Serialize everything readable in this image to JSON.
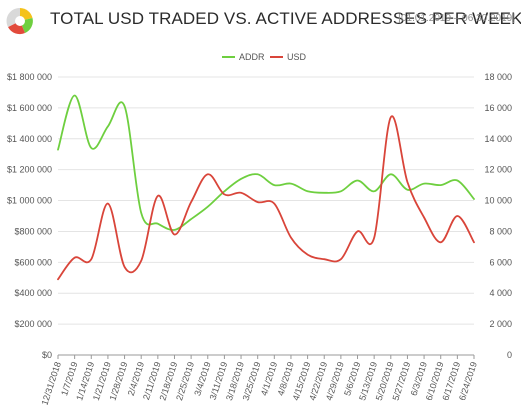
{
  "header": {
    "title": "TOTAL USD TRADED VS. ACTIVE ADDRESSES PER WEEK",
    "date_range": "[01.01.2019 – 06.30.2019]"
  },
  "colors": {
    "addr": "#6ecf3f",
    "usd": "#d9453a",
    "grid": "#e4e4e4",
    "axis": "#999999",
    "text": "#555555"
  },
  "chart_data": {
    "type": "line",
    "x": [
      "12/31/2018",
      "1/7/2019",
      "1/14/2019",
      "1/21/2019",
      "1/28/2019",
      "2/4/2019",
      "2/11/2019",
      "2/18/2019",
      "2/25/2019",
      "3/4/2019",
      "3/11/2019",
      "3/18/2019",
      "3/25/2019",
      "4/1/2019",
      "4/8/2019",
      "4/15/2019",
      "4/22/2019",
      "4/29/2019",
      "5/6/2019",
      "5/13/2019",
      "5/20/2019",
      "5/27/2019",
      "6/3/2019",
      "6/10/2019",
      "6/17/2019",
      "6/24/2019"
    ],
    "series": [
      {
        "name": "ADDR",
        "axis": "right",
        "color": "#6ecf3f",
        "values": [
          13300,
          16800,
          13400,
          14800,
          16100,
          9200,
          8500,
          8100,
          8800,
          9600,
          10600,
          11400,
          11700,
          11000,
          11100,
          10600,
          10500,
          10600,
          11300,
          10600,
          11700,
          10700,
          11100,
          11000,
          11300,
          10100
        ]
      },
      {
        "name": "USD",
        "axis": "left",
        "color": "#d9453a",
        "values": [
          490000,
          630000,
          620000,
          980000,
          570000,
          610000,
          1030000,
          780000,
          990000,
          1170000,
          1040000,
          1050000,
          990000,
          980000,
          760000,
          650000,
          620000,
          620000,
          800000,
          760000,
          1540000,
          1120000,
          890000,
          730000,
          900000,
          730000
        ]
      }
    ],
    "y_left": {
      "min": 0,
      "max": 1800000,
      "step": 200000,
      "tick_labels": [
        "$0",
        "$200 000",
        "$400 000",
        "$600 000",
        "$800 000",
        "$1 000 000",
        "$1 200 000",
        "$1 400 000",
        "$1 600 000",
        "$1 800 000"
      ]
    },
    "y_right": {
      "min": 0,
      "max": 18000,
      "step": 2000,
      "tick_labels": [
        "0",
        "2 000",
        "4 000",
        "6 000",
        "8 000",
        "10 000",
        "12 000",
        "14 000",
        "16 000",
        "18 000"
      ]
    },
    "legend": {
      "position": "top-center",
      "entries": [
        "ADDR",
        "USD"
      ]
    },
    "grid": true
  }
}
